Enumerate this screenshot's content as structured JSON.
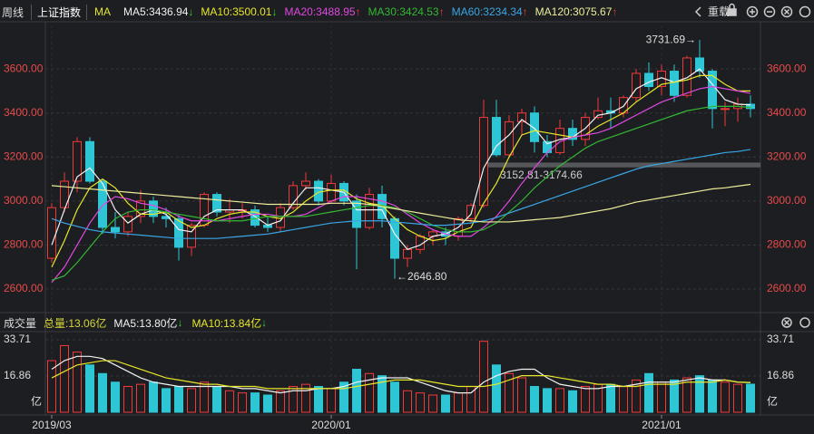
{
  "header": {
    "period": "周线",
    "symbol": "上证指数",
    "indicator": "MA",
    "reload": "重载"
  },
  "chart_data": [
    {
      "type": "candlestick",
      "categories": [
        "2019/03",
        null,
        null,
        null,
        null,
        null,
        null,
        null,
        null,
        null,
        null,
        null,
        null,
        null,
        null,
        null,
        null,
        null,
        null,
        null,
        null,
        null,
        "2020/01",
        null,
        null,
        null,
        null,
        null,
        null,
        null,
        null,
        null,
        null,
        null,
        null,
        null,
        null,
        null,
        null,
        null,
        null,
        null,
        null,
        null,
        null,
        null,
        null,
        null,
        "2021/01",
        null,
        null,
        null,
        null,
        null,
        null,
        null
      ],
      "open": [
        2740,
        2970,
        3090,
        3270,
        3090,
        2880,
        2860,
        2930,
        3000,
        2930,
        2920,
        2790,
        2890,
        3030,
        2950,
        2960,
        2960,
        2890,
        2880,
        2970,
        3070,
        3090,
        3000,
        3080,
        3000,
        2880,
        3030,
        2920,
        2740,
        2780,
        2840,
        2860,
        2840,
        2920,
        2980,
        3380,
        3210,
        3360,
        3400,
        3270,
        3220,
        3330,
        3280,
        3380,
        3410,
        3400,
        3470,
        3580,
        3520,
        3590,
        3480,
        3650,
        3590,
        3420,
        3420,
        3440
      ],
      "high": [
        2990,
        3130,
        3290,
        3290,
        3100,
        2950,
        2950,
        3050,
        3020,
        2970,
        2940,
        2900,
        3040,
        3040,
        3010,
        2990,
        2980,
        2930,
        2990,
        3090,
        3130,
        3100,
        3120,
        3090,
        3030,
        3060,
        3070,
        2930,
        2800,
        2850,
        2870,
        2880,
        2930,
        2990,
        3460,
        3460,
        3390,
        3420,
        3430,
        3300,
        3370,
        3370,
        3400,
        3470,
        3470,
        3480,
        3600,
        3630,
        3620,
        3620,
        3660,
        3731.69,
        3600,
        3450,
        3470,
        3480
      ],
      "low": [
        2720,
        2950,
        3040,
        3080,
        2850,
        2830,
        2840,
        2900,
        2900,
        2880,
        2730,
        2750,
        2880,
        2930,
        2900,
        2920,
        2880,
        2860,
        2860,
        2960,
        3050,
        2980,
        2990,
        2980,
        2690,
        2870,
        2880,
        2646.8,
        2700,
        2760,
        2800,
        2800,
        2820,
        2900,
        2970,
        3200,
        3200,
        3300,
        3220,
        3200,
        3210,
        3250,
        3250,
        3370,
        3330,
        3380,
        3450,
        3500,
        3480,
        3450,
        3470,
        3560,
        3330,
        3340,
        3360,
        3380
      ],
      "close": [
        2970,
        3090,
        3270,
        3090,
        2880,
        2860,
        2930,
        3000,
        2930,
        2920,
        2790,
        2890,
        3030,
        2950,
        2960,
        2960,
        2890,
        2880,
        2970,
        3070,
        3090,
        3000,
        3080,
        3000,
        2880,
        3030,
        2920,
        2740,
        2780,
        2840,
        2860,
        2840,
        2920,
        2980,
        3380,
        3210,
        3360,
        3400,
        3270,
        3220,
        3330,
        3280,
        3380,
        3410,
        3400,
        3470,
        3580,
        3520,
        3590,
        3480,
        3650,
        3590,
        3420,
        3420,
        3440,
        3420
      ],
      "up_color": "#f03a3a",
      "down_color": "#2ec6d4",
      "ylim": [
        2522,
        3798
      ],
      "yticks": [
        {
          "value": 2600,
          "label": "2600.00"
        },
        {
          "value": 2800,
          "label": "2800.00"
        },
        {
          "value": 3000,
          "label": "3000.00"
        },
        {
          "value": 3200,
          "label": "3200.00"
        },
        {
          "value": 3400,
          "label": "3400.00"
        },
        {
          "value": 3600,
          "label": "3600.00"
        }
      ],
      "grid": true,
      "series": [
        {
          "name": "MA5:3436.94",
          "trend": "↓",
          "trend_color": "#2fd02f",
          "color": "#f2f2f2",
          "values": [
            2800,
            2960,
            3110,
            3150,
            3080,
            2960,
            2900,
            2940,
            2960,
            2940,
            2870,
            2860,
            2930,
            2960,
            2960,
            2960,
            2930,
            2890,
            2910,
            2990,
            3060,
            3060,
            3050,
            3040,
            2960,
            2960,
            2960,
            2850,
            2780,
            2800,
            2840,
            2850,
            2880,
            2940,
            3150,
            3250,
            3300,
            3370,
            3330,
            3260,
            3280,
            3290,
            3330,
            3390,
            3400,
            3430,
            3510,
            3540,
            3560,
            3540,
            3560,
            3600,
            3530,
            3460,
            3440,
            3436.94
          ]
        },
        {
          "name": "MA10:3500.01",
          "trend": "↓",
          "trend_color": "#2fd02f",
          "color": "#e6e62a",
          "values": [
            2700,
            2820,
            2960,
            3060,
            3100,
            3060,
            2990,
            2940,
            2940,
            2950,
            2910,
            2880,
            2890,
            2920,
            2940,
            2950,
            2950,
            2930,
            2920,
            2950,
            3000,
            3040,
            3050,
            3050,
            3010,
            2990,
            2980,
            2920,
            2870,
            2840,
            2820,
            2830,
            2860,
            2880,
            2990,
            3080,
            3200,
            3300,
            3320,
            3310,
            3300,
            3290,
            3300,
            3340,
            3370,
            3400,
            3450,
            3490,
            3530,
            3540,
            3550,
            3570,
            3570,
            3530,
            3500,
            3500.01
          ]
        },
        {
          "name": "MA20:3488.95",
          "trend": "↑",
          "trend_color": "#f03a3a",
          "color": "#e048e0",
          "values": [
            2630,
            2700,
            2800,
            2900,
            2980,
            3020,
            3010,
            2990,
            2980,
            2960,
            2930,
            2910,
            2910,
            2910,
            2920,
            2930,
            2940,
            2940,
            2930,
            2930,
            2940,
            2970,
            3000,
            3020,
            3020,
            3010,
            3000,
            2980,
            2940,
            2900,
            2870,
            2850,
            2840,
            2840,
            2880,
            2930,
            3000,
            3080,
            3150,
            3220,
            3270,
            3290,
            3300,
            3310,
            3330,
            3360,
            3390,
            3420,
            3450,
            3470,
            3490,
            3510,
            3520,
            3510,
            3500,
            3488.95
          ]
        },
        {
          "name": "MA30:3424.53",
          "trend": "↑",
          "trend_color": "#f03a3a",
          "color": "#33b833",
          "values": [
            2640,
            2660,
            2720,
            2790,
            2860,
            2920,
            2950,
            2960,
            2960,
            2950,
            2940,
            2930,
            2920,
            2910,
            2910,
            2910,
            2920,
            2930,
            2930,
            2930,
            2930,
            2940,
            2950,
            2960,
            2970,
            2980,
            2980,
            2970,
            2950,
            2920,
            2890,
            2870,
            2860,
            2860,
            2870,
            2900,
            2950,
            3000,
            3060,
            3110,
            3160,
            3200,
            3240,
            3270,
            3290,
            3310,
            3330,
            3350,
            3370,
            3390,
            3410,
            3420,
            3430,
            3430,
            3430,
            3424.53
          ]
        },
        {
          "name": "MA60:3234.34",
          "trend": "↑",
          "trend_color": "#f03a3a",
          "color": "#3aa6e6",
          "values": [
            2920,
            2900,
            2885,
            2870,
            2860,
            2855,
            2850,
            2845,
            2840,
            2835,
            2830,
            2830,
            2830,
            2830,
            2835,
            2840,
            2845,
            2850,
            2860,
            2870,
            2880,
            2890,
            2900,
            2905,
            2910,
            2910,
            2910,
            2905,
            2900,
            2895,
            2890,
            2890,
            2895,
            2900,
            2910,
            2925,
            2945,
            2965,
            2985,
            3005,
            3025,
            3045,
            3065,
            3085,
            3105,
            3125,
            3145,
            3160,
            3170,
            3180,
            3190,
            3200,
            3210,
            3220,
            3225,
            3234.34
          ]
        },
        {
          "name": "MA120:3075.67",
          "trend": "↑",
          "trend_color": "#f03a3a",
          "color": "#eded9a",
          "values": [
            3070,
            3065,
            3060,
            3055,
            3050,
            3045,
            3040,
            3035,
            3030,
            3025,
            3020,
            3015,
            3010,
            3005,
            3000,
            2995,
            2990,
            2985,
            2985,
            2985,
            2985,
            2985,
            2990,
            2990,
            2990,
            2985,
            2975,
            2965,
            2955,
            2945,
            2935,
            2925,
            2915,
            2910,
            2905,
            2905,
            2905,
            2910,
            2915,
            2920,
            2925,
            2935,
            2945,
            2955,
            2965,
            2980,
            2995,
            3005,
            3015,
            3025,
            3035,
            3045,
            3055,
            3060,
            3068,
            3075.67
          ]
        }
      ],
      "annotations": [
        {
          "text": "3731.69→",
          "value": 3731.69
        },
        {
          "text": "←2646.80",
          "value": 2646.8
        }
      ],
      "gap": {
        "text": "3152.81-3174.66",
        "range": [
          3152.81,
          3174.66
        ]
      }
    },
    {
      "type": "volume",
      "title": "成交量",
      "total": "总量:13.06亿",
      "values": [
        24,
        31,
        28,
        22,
        18,
        14,
        12,
        13,
        14,
        11,
        12,
        11,
        14,
        12,
        10,
        9,
        9,
        8,
        10,
        12,
        13,
        12,
        11,
        14,
        20,
        18,
        17,
        14,
        10,
        9,
        8,
        8,
        9,
        12,
        33,
        22,
        18,
        16,
        12,
        11,
        11,
        10,
        12,
        13,
        13,
        12,
        15,
        18,
        14,
        15,
        16,
        17,
        15,
        14,
        13,
        13.06
      ],
      "ylim": [
        0,
        33.71
      ],
      "yticks": [
        33.71,
        16.86
      ],
      "unit": "亿",
      "series": [
        {
          "name": "MA5:13.80亿",
          "trend": "↓",
          "trend_color": "#2fd02f",
          "color": "#f2f2f2",
          "values": [
            20,
            24,
            26,
            26,
            25,
            22,
            19,
            16,
            14,
            13,
            12,
            12,
            12,
            12,
            12,
            11,
            11,
            10,
            9,
            10,
            10,
            11,
            11,
            12,
            14,
            15,
            16,
            16,
            16,
            14,
            12,
            10,
            9,
            9,
            14,
            17,
            19,
            20,
            20,
            16,
            13,
            12,
            11,
            11,
            12,
            12,
            13,
            14,
            14,
            14,
            15,
            16,
            15,
            15,
            14,
            13.8
          ]
        },
        {
          "name": "MA10:13.84亿",
          "trend": "↓",
          "trend_color": "#2fd02f",
          "color": "#e6e62a",
          "values": [
            16,
            19,
            22,
            23,
            24,
            24,
            22,
            20,
            18,
            16,
            15,
            14,
            13,
            13,
            12,
            12,
            12,
            11,
            11,
            11,
            11,
            11,
            11,
            11,
            12,
            13,
            14,
            15,
            15,
            15,
            14,
            13,
            12,
            12,
            12,
            13,
            15,
            17,
            17,
            17,
            16,
            15,
            14,
            13,
            13,
            12,
            12,
            13,
            13,
            13,
            14,
            14,
            14,
            15,
            14,
            13.84
          ]
        }
      ]
    }
  ]
}
